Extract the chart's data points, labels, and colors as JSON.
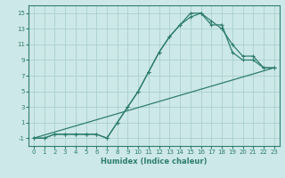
{
  "xlabel": "Humidex (Indice chaleur)",
  "bg_color": "#cde8e8",
  "grid_color": "#aacfcf",
  "line_color": "#2e7d6e",
  "xlim": [
    -0.5,
    23.5
  ],
  "ylim": [
    -2.0,
    16.0
  ],
  "xticks": [
    0,
    1,
    2,
    3,
    4,
    5,
    6,
    7,
    8,
    9,
    10,
    11,
    12,
    13,
    14,
    15,
    16,
    17,
    18,
    19,
    20,
    21,
    22,
    23
  ],
  "yticks": [
    -1,
    1,
    3,
    5,
    7,
    9,
    11,
    13,
    15
  ],
  "series1_x": [
    0,
    1,
    2,
    3,
    4,
    5,
    6,
    7,
    8,
    9,
    10,
    11,
    12,
    13,
    14,
    15,
    16,
    17,
    18,
    19,
    20,
    21,
    22,
    23
  ],
  "series1_y": [
    -1,
    -1,
    -0.5,
    -0.5,
    -0.5,
    -0.5,
    -0.5,
    -1,
    1,
    3,
    5,
    7.5,
    10,
    12,
    13.5,
    15,
    15,
    14,
    13,
    11,
    9.5,
    9.5,
    8,
    8
  ],
  "series2_x": [
    0,
    1,
    2,
    3,
    4,
    5,
    6,
    7,
    8,
    9,
    10,
    11,
    12,
    13,
    14,
    15,
    16,
    17,
    18,
    19,
    20,
    21,
    22,
    23
  ],
  "series2_y": [
    -1,
    -1,
    -0.5,
    -0.5,
    -0.5,
    -0.5,
    -0.5,
    -1,
    1,
    3,
    5,
    7.5,
    10,
    12,
    13.5,
    14.5,
    15,
    13.5,
    13.5,
    10,
    9,
    9,
    8,
    8
  ],
  "series3_x": [
    0,
    23
  ],
  "series3_y": [
    -1,
    8
  ],
  "xlabel_fontsize": 6,
  "tick_fontsize": 5,
  "linewidth": 0.9,
  "marker_size": 3
}
